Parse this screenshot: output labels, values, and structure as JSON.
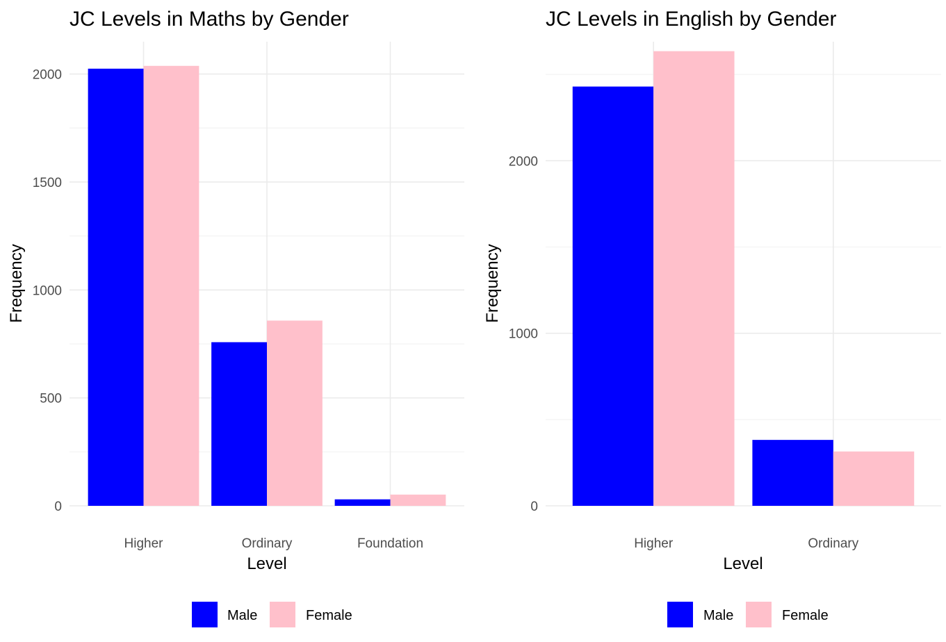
{
  "chart_data": [
    {
      "type": "bar",
      "title": "JC Levels in Maths by Gender",
      "xlabel": "Level",
      "ylabel": "Frequency",
      "categories": [
        "Higher",
        "Ordinary",
        "Foundation"
      ],
      "series": [
        {
          "name": "Male",
          "color": "#0000ff",
          "values": [
            2025,
            758,
            30
          ]
        },
        {
          "name": "Female",
          "color": "#ffc0cb",
          "values": [
            2038,
            858,
            52
          ]
        }
      ],
      "ylim": [
        0,
        2150
      ],
      "yticks": [
        0,
        500,
        1000,
        1500,
        2000
      ],
      "grid": true,
      "legend": {
        "position": "bottom",
        "entries": [
          "Male",
          "Female"
        ]
      }
    },
    {
      "type": "bar",
      "title": "JC Levels in English by Gender",
      "xlabel": "Level",
      "ylabel": "Frequency",
      "categories": [
        "Higher",
        "Ordinary"
      ],
      "series": [
        {
          "name": "Male",
          "color": "#0000ff",
          "values": [
            2430,
            382
          ]
        },
        {
          "name": "Female",
          "color": "#ffc0cb",
          "values": [
            2635,
            315
          ]
        }
      ],
      "ylim": [
        0,
        2690
      ],
      "yticks": [
        0,
        1000,
        2000
      ],
      "grid": true,
      "legend": {
        "position": "bottom",
        "entries": [
          "Male",
          "Female"
        ]
      }
    }
  ]
}
